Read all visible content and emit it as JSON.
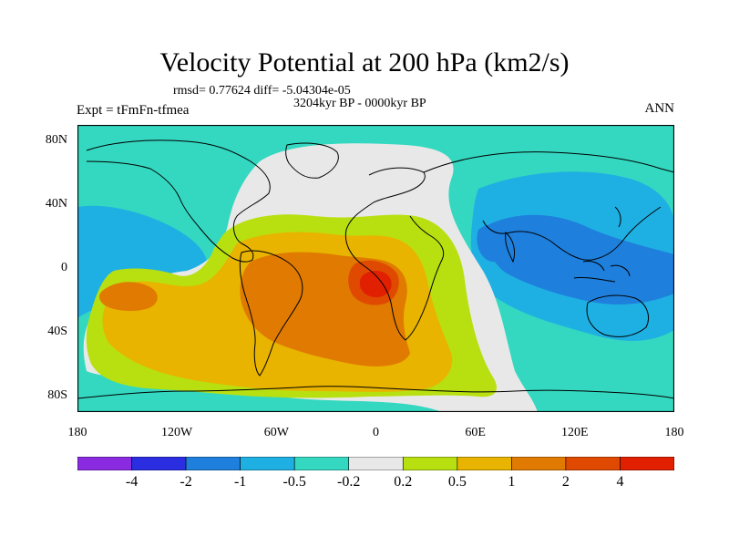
{
  "title": "Velocity Potential at 200 hPa (km2/s)",
  "stats": "rmsd= 0.77624 diff= -5.04304e-05",
  "period": "3204kyr BP - 0000kyr BP",
  "experiment": "Expt = tFmFn-tfmea",
  "season": "ANN",
  "lat_ticks": [
    {
      "label": "80N",
      "lat": 80
    },
    {
      "label": "40N",
      "lat": 40
    },
    {
      "label": "0",
      "lat": 0
    },
    {
      "label": "40S",
      "lat": -40
    },
    {
      "label": "80S",
      "lat": -80
    }
  ],
  "lon_ticks": [
    {
      "label": "180",
      "lon": -180
    },
    {
      "label": "120W",
      "lon": -120
    },
    {
      "label": "60W",
      "lon": -60
    },
    {
      "label": "0",
      "lon": 0
    },
    {
      "label": "60E",
      "lon": 60
    },
    {
      "label": "120E",
      "lon": 120
    },
    {
      "label": "180",
      "lon": 180
    }
  ],
  "colorbar": {
    "colors": [
      "#8a2be2",
      "#2a2ee0",
      "#1e7fdc",
      "#1fb0e3",
      "#34d8c0",
      "#e8e8e8",
      "#b8e010",
      "#e8b400",
      "#e07a00",
      "#e04a00",
      "#e02000"
    ],
    "levels": [
      "-4",
      "-2",
      "-1",
      "-0.5",
      "-0.2",
      "0.2",
      "0.5",
      "1",
      "2",
      "4"
    ]
  },
  "colors": {
    "frame": "#000000",
    "coast": "#000000"
  }
}
